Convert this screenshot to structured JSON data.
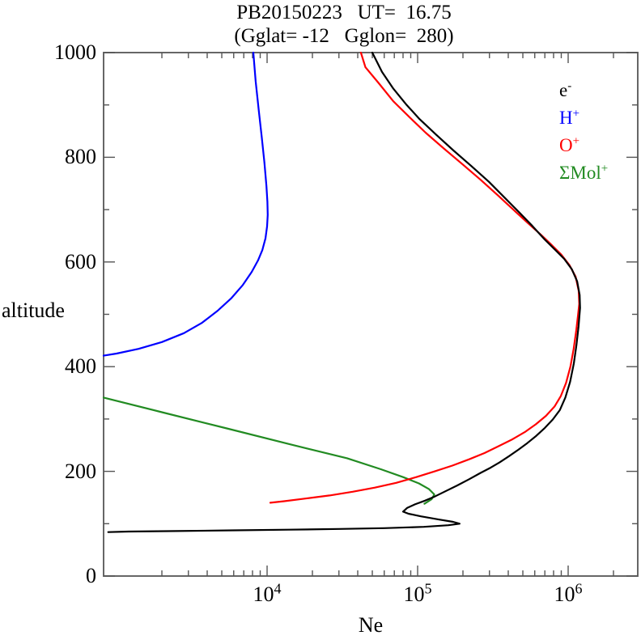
{
  "header": {
    "title_line1": "PB20150223   UT=  16.75",
    "title_line2": "(Gglat= -12   Gglon=  280)"
  },
  "legend": {
    "entries": [
      {
        "base": "e",
        "sup": "-",
        "color": "#000000"
      },
      {
        "base": "H",
        "sup": "+",
        "color": "#0000ff"
      },
      {
        "base": "O",
        "sup": "+",
        "color": "#ff0000"
      },
      {
        "base": "ΣMol",
        "sup": "+",
        "color": "#228b22"
      }
    ]
  },
  "chart_data": {
    "type": "line",
    "title": "PB20150223  UT= 16.75  (Gglat= -12  Gglon= 280)",
    "xlabel": "Ne",
    "ylabel": "altitude",
    "grid": false,
    "legend_position": "top-right-inside",
    "x_axis": {
      "scale": "log",
      "min": 820,
      "max": 2900000,
      "major_ticks": [
        10000,
        100000,
        1000000
      ],
      "tick_labels": [
        {
          "base": "10",
          "exp": "4"
        },
        {
          "base": "10",
          "exp": "5"
        },
        {
          "base": "10",
          "exp": "6"
        }
      ]
    },
    "y_axis": {
      "scale": "linear",
      "min": 0,
      "max": 1000,
      "major_step": 200,
      "minor_step": 100,
      "tick_labels": [
        "1000",
        "800",
        "600",
        "400",
        "200",
        "0"
      ]
    },
    "frame_color": "#666666",
    "tick_color": "#555555",
    "series": [
      {
        "name": "e-",
        "color": "#000000",
        "points": [
          [
            880,
            84
          ],
          [
            1200,
            85
          ],
          [
            2500,
            86
          ],
          [
            6000,
            87.3
          ],
          [
            14000,
            88.6
          ],
          [
            30000,
            90
          ],
          [
            60000,
            91.5
          ],
          [
            110000,
            94
          ],
          [
            160000,
            97
          ],
          [
            190000,
            100
          ],
          [
            172000,
            103.5
          ],
          [
            138000,
            108
          ],
          [
            105000,
            114
          ],
          [
            87000,
            119
          ],
          [
            80000,
            123
          ],
          [
            85000,
            130
          ],
          [
            96000,
            137
          ],
          [
            112000,
            144
          ],
          [
            130000,
            152
          ],
          [
            153000,
            162
          ],
          [
            183000,
            173
          ],
          [
            220000,
            185
          ],
          [
            262000,
            197
          ],
          [
            305000,
            207
          ],
          [
            350000,
            217
          ],
          [
            405000,
            229
          ],
          [
            465000,
            241
          ],
          [
            535000,
            254
          ],
          [
            615000,
            268
          ],
          [
            700000,
            283
          ],
          [
            790000,
            299
          ],
          [
            880000,
            317
          ],
          [
            958000,
            341
          ],
          [
            1030000,
            371
          ],
          [
            1090000,
            406
          ],
          [
            1135000,
            441
          ],
          [
            1172000,
            476
          ],
          [
            1200000,
            512
          ],
          [
            1192000,
            537
          ],
          [
            1148000,
            563
          ],
          [
            1058000,
            586
          ],
          [
            940000,
            606
          ],
          [
            820000,
            623
          ],
          [
            698000,
            643
          ],
          [
            578000,
            669
          ],
          [
            468000,
            696
          ],
          [
            378000,
            723
          ],
          [
            298000,
            753
          ],
          [
            228000,
            783
          ],
          [
            173000,
            813
          ],
          [
            133000,
            843
          ],
          [
            103000,
            873
          ],
          [
            84000,
            901
          ],
          [
            69000,
            931
          ],
          [
            58000,
            963
          ],
          [
            50000,
            1000
          ]
        ]
      },
      {
        "name": "H+",
        "color": "#0000ff",
        "points": [
          [
            820,
            421
          ],
          [
            1000,
            425
          ],
          [
            1400,
            434
          ],
          [
            2000,
            447
          ],
          [
            2800,
            464
          ],
          [
            3700,
            484
          ],
          [
            4700,
            507
          ],
          [
            5800,
            531
          ],
          [
            6900,
            556
          ],
          [
            7900,
            581
          ],
          [
            8700,
            603
          ],
          [
            9300,
            623
          ],
          [
            9750,
            645
          ],
          [
            10000,
            668
          ],
          [
            10100,
            690
          ],
          [
            10050,
            715
          ],
          [
            9900,
            745
          ],
          [
            9600,
            790
          ],
          [
            9200,
            840
          ],
          [
            8800,
            890
          ],
          [
            8400,
            945
          ],
          [
            8100,
            1000
          ]
        ]
      },
      {
        "name": "O+",
        "color": "#ff0000",
        "points": [
          [
            10500,
            140
          ],
          [
            13000,
            143
          ],
          [
            18000,
            148
          ],
          [
            26000,
            154
          ],
          [
            37000,
            161
          ],
          [
            52000,
            169
          ],
          [
            72000,
            178
          ],
          [
            98000,
            189
          ],
          [
            130000,
            200
          ],
          [
            170000,
            211
          ],
          [
            220000,
            223
          ],
          [
            278000,
            235
          ],
          [
            345000,
            248
          ],
          [
            425000,
            261
          ],
          [
            515000,
            275
          ],
          [
            610000,
            290
          ],
          [
            712000,
            306
          ],
          [
            812000,
            324
          ],
          [
            895000,
            344
          ],
          [
            968000,
            369
          ],
          [
            1035000,
            400
          ],
          [
            1088000,
            434
          ],
          [
            1130000,
            468
          ],
          [
            1165000,
            500
          ],
          [
            1185000,
            520
          ],
          [
            1175000,
            545
          ],
          [
            1120000,
            572
          ],
          [
            1020000,
            594
          ],
          [
            900000,
            614
          ],
          [
            780000,
            632
          ],
          [
            660000,
            652
          ],
          [
            542000,
            674
          ],
          [
            432000,
            700
          ],
          [
            342000,
            727
          ],
          [
            262000,
            757
          ],
          [
            198000,
            787
          ],
          [
            149000,
            817
          ],
          [
            113000,
            847
          ],
          [
            88000,
            877
          ],
          [
            69000,
            907
          ],
          [
            55000,
            942
          ],
          [
            45000,
            972
          ],
          [
            42000,
            1000
          ]
        ]
      },
      {
        "name": "ΣMol+",
        "color": "#228b22",
        "points": [
          [
            820,
            341
          ],
          [
            2000,
            313
          ],
          [
            5400,
            282
          ],
          [
            14500,
            251
          ],
          [
            34000,
            225
          ],
          [
            57000,
            204
          ],
          [
            80000,
            189
          ],
          [
            102000,
            177
          ],
          [
            119000,
            166
          ],
          [
            129000,
            156
          ],
          [
            124000,
            147
          ],
          [
            111000,
            138
          ]
        ]
      }
    ]
  }
}
